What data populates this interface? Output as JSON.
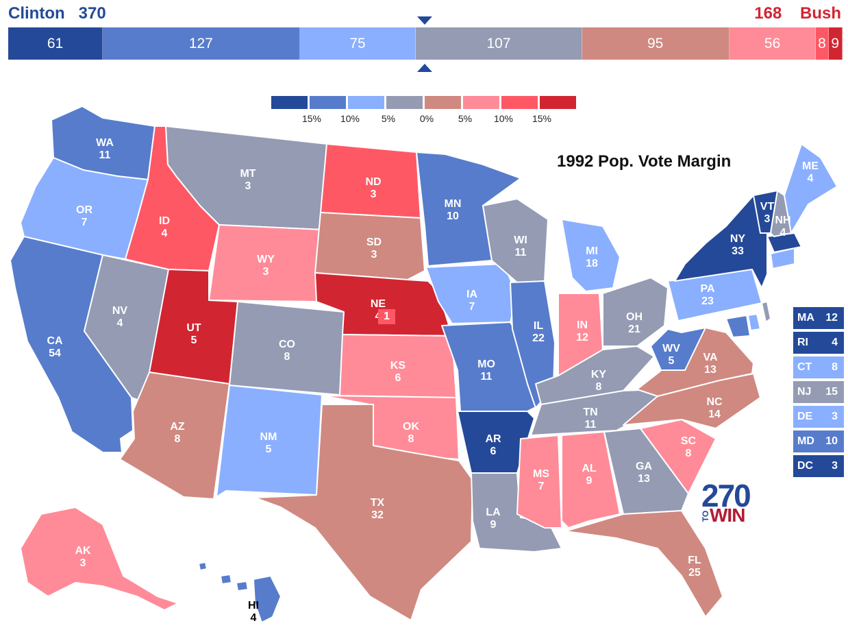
{
  "candidates": {
    "left": {
      "name": "Clinton",
      "votes": "370",
      "color": "#244999"
    },
    "right": {
      "name": "Bush",
      "votes": "168",
      "color": "#D22532"
    }
  },
  "ev_bar": [
    {
      "value": "61",
      "count": 61,
      "color": "#244999"
    },
    {
      "value": "127",
      "count": 127,
      "color": "#577CCC"
    },
    {
      "value": "75",
      "count": 75,
      "color": "#8AAFFF"
    },
    {
      "value": "107",
      "count": 107,
      "color": "#949BB3"
    },
    {
      "value": "95",
      "count": 95,
      "color": "#CF8980"
    },
    {
      "value": "56",
      "count": 56,
      "color": "#FF8B98"
    },
    {
      "value": "8",
      "count": 8,
      "color": "#FF5865"
    },
    {
      "value": "9",
      "count": 9,
      "color": "#D22532"
    }
  ],
  "legend": {
    "swatches": [
      "#244999",
      "#577CCC",
      "#8AAFFF",
      "#949BB3",
      "#CF8980",
      "#FF8B98",
      "#FF5865",
      "#D22532"
    ],
    "labels": [
      "15%",
      "10%",
      "5%",
      "0%",
      "5%",
      "10%",
      "15%"
    ]
  },
  "map_title": "1992 Pop. Vote Margin",
  "colors": {
    "safe_d": "#244999",
    "likely_d": "#577CCC",
    "lean_d": "#8AAFFF",
    "tossup": "#949BB3",
    "tilt_r": "#CF8980",
    "lean_r": "#FF8B98",
    "likely_r": "#FF5865",
    "safe_r": "#D22532"
  },
  "states": [
    {
      "abbr": "WA",
      "ev": "11",
      "cat": "likely_d"
    },
    {
      "abbr": "OR",
      "ev": "7",
      "cat": "lean_d"
    },
    {
      "abbr": "CA",
      "ev": "54",
      "cat": "likely_d"
    },
    {
      "abbr": "NV",
      "ev": "4",
      "cat": "tossup"
    },
    {
      "abbr": "ID",
      "ev": "4",
      "cat": "likely_r"
    },
    {
      "abbr": "MT",
      "ev": "3",
      "cat": "tossup"
    },
    {
      "abbr": "WY",
      "ev": "3",
      "cat": "lean_r"
    },
    {
      "abbr": "UT",
      "ev": "5",
      "cat": "safe_r"
    },
    {
      "abbr": "AZ",
      "ev": "8",
      "cat": "tilt_r"
    },
    {
      "abbr": "CO",
      "ev": "8",
      "cat": "tossup"
    },
    {
      "abbr": "NM",
      "ev": "5",
      "cat": "lean_d"
    },
    {
      "abbr": "ND",
      "ev": "3",
      "cat": "likely_r"
    },
    {
      "abbr": "SD",
      "ev": "3",
      "cat": "tilt_r"
    },
    {
      "abbr": "NE",
      "ev": "4",
      "cat": "safe_r"
    },
    {
      "abbr": "KS",
      "ev": "6",
      "cat": "lean_r"
    },
    {
      "abbr": "OK",
      "ev": "8",
      "cat": "lean_r"
    },
    {
      "abbr": "TX",
      "ev": "32",
      "cat": "tilt_r"
    },
    {
      "abbr": "MN",
      "ev": "10",
      "cat": "likely_d"
    },
    {
      "abbr": "IA",
      "ev": "7",
      "cat": "lean_d"
    },
    {
      "abbr": "MO",
      "ev": "11",
      "cat": "likely_d"
    },
    {
      "abbr": "AR",
      "ev": "6",
      "cat": "safe_d"
    },
    {
      "abbr": "LA",
      "ev": "9",
      "cat": "tossup"
    },
    {
      "abbr": "WI",
      "ev": "11",
      "cat": "tossup"
    },
    {
      "abbr": "IL",
      "ev": "22",
      "cat": "likely_d"
    },
    {
      "abbr": "MI",
      "ev": "18",
      "cat": "lean_d"
    },
    {
      "abbr": "IN",
      "ev": "12",
      "cat": "lean_r"
    },
    {
      "abbr": "OH",
      "ev": "21",
      "cat": "tossup"
    },
    {
      "abbr": "KY",
      "ev": "8",
      "cat": "tossup"
    },
    {
      "abbr": "TN",
      "ev": "11",
      "cat": "tossup"
    },
    {
      "abbr": "MS",
      "ev": "7",
      "cat": "lean_r"
    },
    {
      "abbr": "AL",
      "ev": "9",
      "cat": "lean_r"
    },
    {
      "abbr": "GA",
      "ev": "13",
      "cat": "tossup"
    },
    {
      "abbr": "FL",
      "ev": "25",
      "cat": "tilt_r"
    },
    {
      "abbr": "SC",
      "ev": "8",
      "cat": "lean_r"
    },
    {
      "abbr": "NC",
      "ev": "14",
      "cat": "tilt_r"
    },
    {
      "abbr": "VA",
      "ev": "13",
      "cat": "tilt_r"
    },
    {
      "abbr": "WV",
      "ev": "5",
      "cat": "likely_d"
    },
    {
      "abbr": "PA",
      "ev": "23",
      "cat": "lean_d"
    },
    {
      "abbr": "NY",
      "ev": "33",
      "cat": "safe_d"
    },
    {
      "abbr": "VT",
      "ev": "3",
      "cat": "safe_d"
    },
    {
      "abbr": "NH",
      "ev": "4",
      "cat": "tossup"
    },
    {
      "abbr": "ME",
      "ev": "4",
      "cat": "lean_d"
    },
    {
      "abbr": "AK",
      "ev": "3",
      "cat": "lean_r"
    },
    {
      "abbr": "HI",
      "ev": "4",
      "cat": "likely_d"
    }
  ],
  "ne_district": {
    "ev": "1",
    "cat": "likely_r"
  },
  "small_states": [
    {
      "abbr": "MA",
      "ev": "12",
      "cat": "safe_d"
    },
    {
      "abbr": "RI",
      "ev": "4",
      "cat": "safe_d"
    },
    {
      "abbr": "CT",
      "ev": "8",
      "cat": "lean_d"
    },
    {
      "abbr": "NJ",
      "ev": "15",
      "cat": "tossup"
    },
    {
      "abbr": "DE",
      "ev": "3",
      "cat": "lean_d"
    },
    {
      "abbr": "MD",
      "ev": "10",
      "cat": "likely_d"
    },
    {
      "abbr": "DC",
      "ev": "3",
      "cat": "safe_d"
    }
  ],
  "logo": {
    "number": "270",
    "to": "TO",
    "win": "WIN"
  }
}
